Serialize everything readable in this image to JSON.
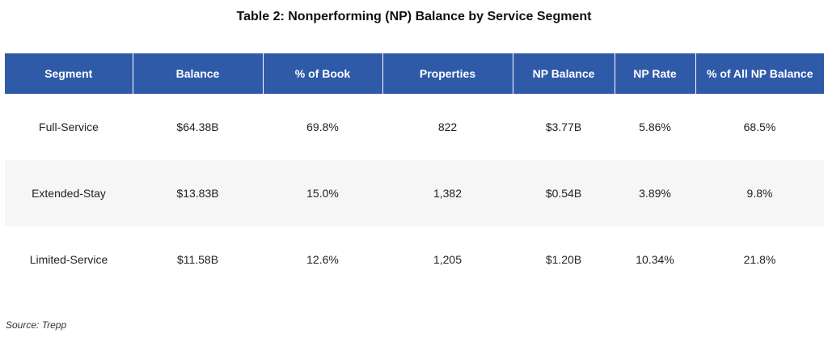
{
  "title": "Table 2:  Nonperforming (NP) Balance by Service Segment",
  "columns": [
    "Segment",
    "Balance",
    "% of Book",
    "Properties",
    "NP Balance",
    "NP Rate",
    "% of All NP Balance"
  ],
  "rows": [
    [
      "Full-Service",
      "$64.38B",
      "69.8%",
      "822",
      "$3.77B",
      "5.86%",
      "68.5%"
    ],
    [
      "Extended-Stay",
      "$13.83B",
      "15.0%",
      "1,382",
      "$0.54B",
      "3.89%",
      "9.8%"
    ],
    [
      "Limited-Service",
      "$11.58B",
      "12.6%",
      "1,205",
      "$1.20B",
      "10.34%",
      "21.8%"
    ]
  ],
  "source": "Source: Trepp",
  "colors": {
    "header_bg": "#2f5aa8",
    "header_text": "#ffffff",
    "band_row": "#f6f6f6"
  }
}
